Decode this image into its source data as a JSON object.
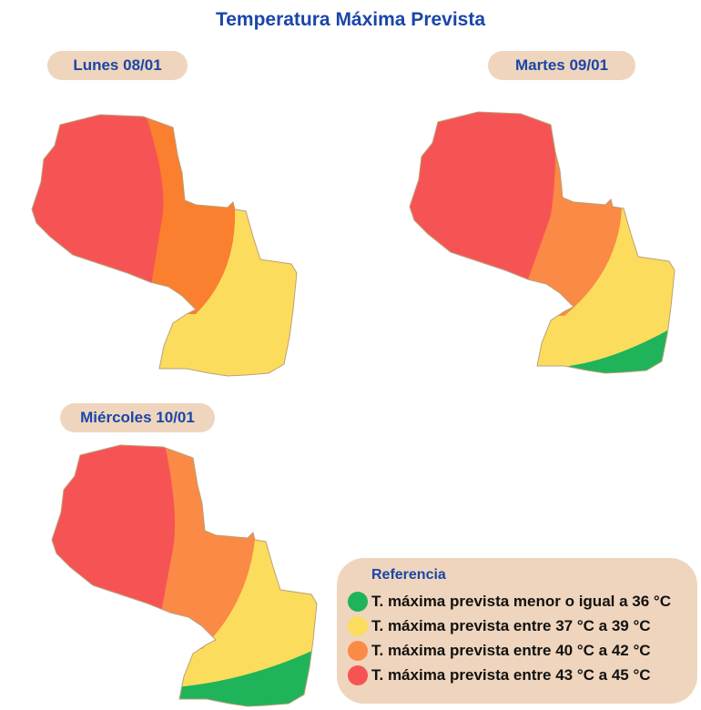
{
  "title": "Temperatura Máxima Prevista",
  "days": [
    {
      "label": "Lunes 08/01",
      "zones": [
        "red",
        "orange",
        "yellow"
      ]
    },
    {
      "label": "Martes 09/01",
      "zones": [
        "red",
        "orange",
        "yellow",
        "green"
      ]
    },
    {
      "label": "Miércoles 10/01",
      "zones": [
        "red",
        "orange",
        "yellow",
        "green"
      ]
    }
  ],
  "legend": {
    "title": "Referencia",
    "items": [
      {
        "label": "T. máxima prevista menor o igual a 36 °C",
        "color": "#1fb45a"
      },
      {
        "label": "T. máxima prevista entre 37 °C a 39 °C",
        "color": "#fcdc5c"
      },
      {
        "label": "T. máxima prevista entre 40 °C a 42 °C",
        "color": "#fa8a45"
      },
      {
        "label": "T. máxima prevista entre 43 °C a 45 °C",
        "color": "#f65454"
      }
    ]
  }
}
